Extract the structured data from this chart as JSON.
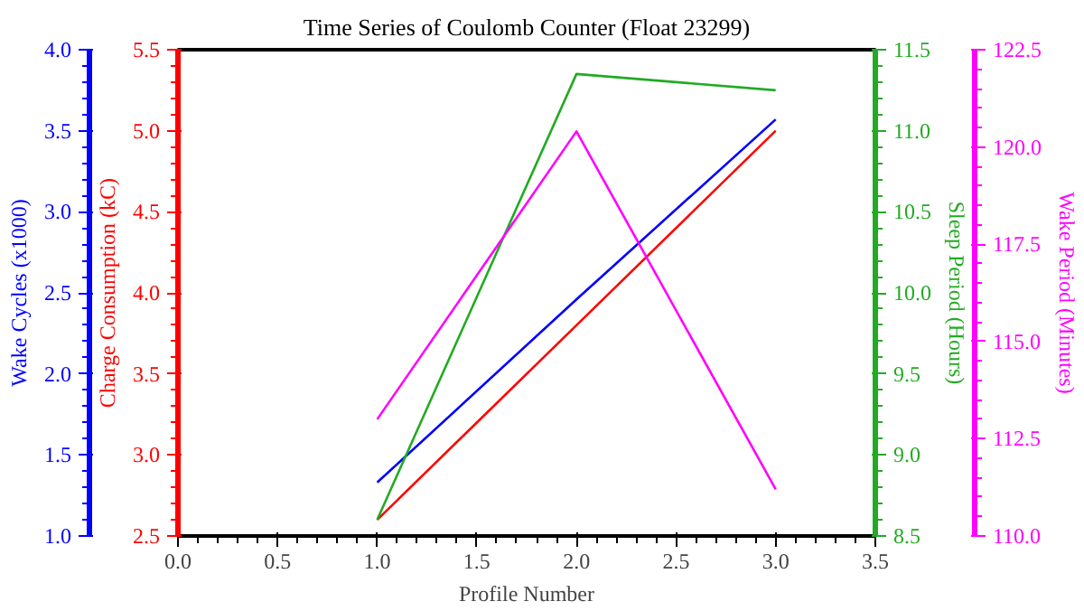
{
  "chart_data": [
    {
      "type": "line",
      "title": "Time Series of Coulomb Counter (Float 23299)",
      "xlabel": "Profile Number",
      "ylabel": "Charge Consumption (kC)",
      "y2label": "Wake Cycles (x1000)",
      "y3label": "Sleep Period (Hours)",
      "x": [
        1,
        2,
        3
      ],
      "series": [
        {
          "color": "#ff0000",
          "values": [
            2.6,
            3.8,
            5.0
          ]
        },
        {
          "color": "#0000ff",
          "axis": "y2",
          "values": [
            1.33,
            2.46,
            3.57
          ]
        },
        {
          "color": "#22aa22",
          "axis": "y3",
          "values": [
            8.6,
            11.35,
            11.25
          ]
        }
      ],
      "xlim": [
        0,
        3.5
      ],
      "xticks": [
        {
          "value": 0,
          "label": "0.0"
        },
        {
          "value": 0.5,
          "label": "0.5"
        },
        {
          "value": 1,
          "label": "1.0"
        },
        {
          "value": 1.5,
          "label": "1.5"
        },
        {
          "value": 2,
          "label": "2.0"
        },
        {
          "value": 2.5,
          "label": "2.5"
        },
        {
          "value": 3,
          "label": "3.0"
        },
        {
          "value": 3.5,
          "label": "3.5"
        }
      ],
      "ylim": [
        2.5,
        5.5
      ],
      "yticks": [
        2.5,
        {
          "value": 3,
          "label": "3.0"
        },
        3.5,
        {
          "value": 4,
          "label": "4.0"
        },
        4.5,
        {
          "value": 5,
          "label": "5.0"
        },
        5.5
      ],
      "y2lim": [
        1,
        4
      ],
      "y2ticks": [
        {
          "value": 1,
          "label": "1.0"
        },
        1.5,
        {
          "value": 2,
          "label": "2.0"
        },
        2.5,
        {
          "value": 3,
          "label": "3.0"
        },
        3.5,
        {
          "value": 4,
          "label": "4.0"
        }
      ],
      "y3lim": [
        8.5,
        11.5
      ],
      "y3ticks": [
        8.5,
        {
          "value": 9,
          "label": "9.0"
        },
        9.5,
        {
          "value": 10,
          "label": "10.0"
        },
        10.5,
        {
          "value": 11,
          "label": "11.0"
        },
        11.5
      ],
      "grid": false,
      "marker": "none",
      "line_style": "solid"
    },
    {
      "type": "line",
      "ylabel": "Wake Period (Minutes)",
      "x": [
        1,
        2,
        3
      ],
      "series": [
        {
          "color": "#ff00ff",
          "values": [
            113.0,
            120.4,
            111.2
          ]
        }
      ],
      "xlim": [
        0,
        3.5
      ],
      "ylim": [
        110,
        122.5
      ],
      "yticks": [
        {
          "value": 110,
          "label": "110.0"
        },
        112.5,
        {
          "value": 115,
          "label": "115.0"
        },
        117.5,
        {
          "value": 120,
          "label": "120.0"
        },
        122.5
      ],
      "tick_labels": "y",
      "grid": false,
      "marker": "none",
      "line_style": "solid"
    }
  ]
}
